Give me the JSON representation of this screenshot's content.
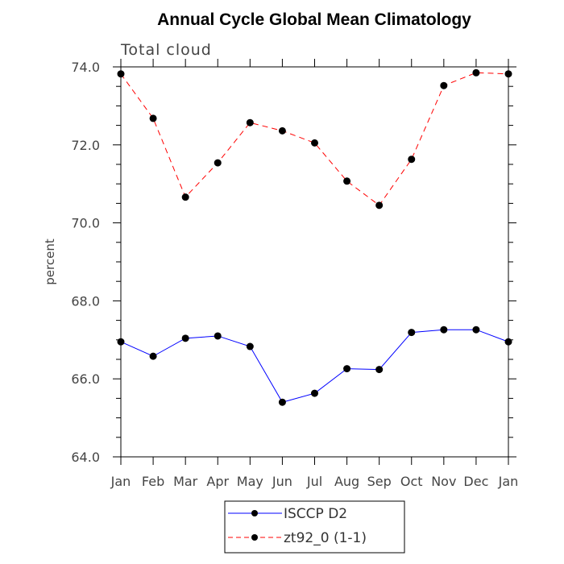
{
  "chart_data": {
    "type": "line",
    "title": "Annual Cycle Global Mean Climatology",
    "subtitle": "Total cloud",
    "xlabel": "",
    "ylabel": "percent",
    "categories": [
      "Jan",
      "Feb",
      "Mar",
      "Apr",
      "May",
      "Jun",
      "Jul",
      "Aug",
      "Sep",
      "Oct",
      "Nov",
      "Dec",
      "Jan"
    ],
    "ylim": [
      64.0,
      74.0
    ],
    "yticks": [
      "64.0",
      "66.0",
      "68.0",
      "70.0",
      "72.0",
      "74.0"
    ],
    "grid": false,
    "legend_position": "bottom-center",
    "series": [
      {
        "name": "ISCCP D2",
        "color": "#0000ff",
        "line_style": "solid",
        "marker": "circle",
        "values": [
          66.95,
          66.58,
          67.04,
          67.1,
          66.83,
          65.4,
          65.63,
          66.26,
          66.24,
          67.19,
          67.26,
          67.26,
          66.95
        ]
      },
      {
        "name": "zt92_0 (1-1)",
        "color": "#ff0000",
        "line_style": "dashed",
        "marker": "circle",
        "values": [
          73.82,
          72.68,
          70.66,
          71.54,
          72.57,
          72.36,
          72.05,
          71.07,
          70.45,
          71.63,
          73.52,
          73.85,
          73.82
        ]
      }
    ]
  }
}
